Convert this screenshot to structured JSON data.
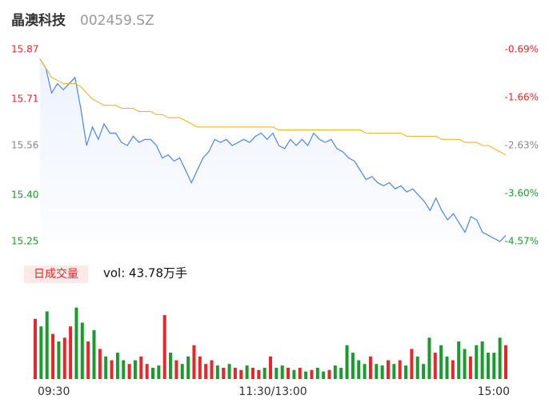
{
  "header": {
    "name": "晶澳科技",
    "code": "002459.SZ"
  },
  "chart_data": [
    {
      "type": "line",
      "x": [
        0,
        3,
        6,
        9,
        12,
        15,
        18,
        21,
        24,
        27,
        30,
        33,
        36,
        39,
        42,
        45,
        48,
        51,
        54,
        57,
        60,
        63,
        66,
        69,
        72,
        75,
        78,
        81,
        84,
        87,
        90,
        93,
        96,
        99,
        102,
        105,
        108,
        111,
        114,
        117,
        120,
        123,
        126,
        129,
        132,
        135,
        138,
        141,
        144,
        147,
        150,
        153,
        156,
        159,
        162,
        165,
        168,
        171,
        174,
        177,
        180,
        183,
        186,
        189,
        192,
        195,
        198,
        201,
        204,
        207,
        210,
        213,
        216,
        219,
        222,
        225,
        228,
        231,
        234,
        237,
        240
      ],
      "xlim": [
        0,
        240
      ],
      "series": [
        {
          "name": "price",
          "color": "#4a86e8",
          "values": [
            15.84,
            15.81,
            15.73,
            15.76,
            15.74,
            15.76,
            15.78,
            15.68,
            15.56,
            15.62,
            15.58,
            15.63,
            15.6,
            15.6,
            15.57,
            15.56,
            15.59,
            15.57,
            15.58,
            15.58,
            15.56,
            15.52,
            15.53,
            15.51,
            15.52,
            15.48,
            15.44,
            15.48,
            15.52,
            15.54,
            15.58,
            15.57,
            15.58,
            15.56,
            15.57,
            15.58,
            15.57,
            15.59,
            15.6,
            15.58,
            15.6,
            15.56,
            15.55,
            15.58,
            15.56,
            15.58,
            15.56,
            15.6,
            15.58,
            15.57,
            15.58,
            15.55,
            15.54,
            15.52,
            15.51,
            15.48,
            15.45,
            15.46,
            15.44,
            15.43,
            15.44,
            15.42,
            15.43,
            15.41,
            15.42,
            15.4,
            15.38,
            15.35,
            15.39,
            15.35,
            15.32,
            15.34,
            15.31,
            15.28,
            15.33,
            15.32,
            15.28,
            15.27,
            15.26,
            15.25,
            15.27
          ]
        },
        {
          "name": "average",
          "color": "#f0b429",
          "values": [
            15.84,
            15.81,
            15.78,
            15.77,
            15.76,
            15.76,
            15.76,
            15.75,
            15.73,
            15.71,
            15.7,
            15.69,
            15.69,
            15.69,
            15.68,
            15.68,
            15.68,
            15.67,
            15.67,
            15.67,
            15.66,
            15.66,
            15.65,
            15.65,
            15.65,
            15.64,
            15.63,
            15.62,
            15.62,
            15.62,
            15.62,
            15.62,
            15.62,
            15.62,
            15.62,
            15.62,
            15.62,
            15.62,
            15.62,
            15.62,
            15.62,
            15.61,
            15.61,
            15.61,
            15.61,
            15.61,
            15.61,
            15.61,
            15.61,
            15.61,
            15.61,
            15.61,
            15.61,
            15.61,
            15.61,
            15.61,
            15.6,
            15.6,
            15.6,
            15.6,
            15.6,
            15.6,
            15.6,
            15.59,
            15.59,
            15.59,
            15.59,
            15.59,
            15.59,
            15.58,
            15.58,
            15.58,
            15.58,
            15.57,
            15.57,
            15.57,
            15.56,
            15.56,
            15.55,
            15.54,
            15.53
          ]
        }
      ],
      "ylim": [
        15.25,
        15.87
      ],
      "yticks": [
        {
          "value": 15.87,
          "label": "15.87"
        },
        {
          "value": 15.71,
          "label": "15.71"
        },
        {
          "value": 15.56,
          "label": "15.56"
        },
        {
          "value": 15.4,
          "label": "15.40"
        },
        {
          "value": 15.25,
          "label": "15.25"
        }
      ],
      "y2lim": [
        -4.57,
        -0.69
      ],
      "y2ticks": [
        {
          "value": -0.69,
          "label": "-0.69%"
        },
        {
          "value": -1.66,
          "label": "-1.66%"
        },
        {
          "value": -2.63,
          "label": "-2.63%"
        },
        {
          "value": -3.6,
          "label": "-3.60%"
        },
        {
          "value": -4.57,
          "label": "-4.57%"
        }
      ],
      "up_color": "#e8262a",
      "down_color": "#1a9b2e",
      "flat_color": "#888888"
    },
    {
      "type": "bar",
      "title": "日成交量",
      "subtitle": "vol: 43.78万手",
      "x": [
        0,
        3,
        6,
        9,
        12,
        15,
        18,
        21,
        24,
        27,
        30,
        33,
        36,
        39,
        42,
        45,
        48,
        51,
        54,
        57,
        60,
        63,
        66,
        69,
        72,
        75,
        78,
        81,
        84,
        87,
        90,
        93,
        96,
        99,
        102,
        105,
        108,
        111,
        114,
        117,
        120,
        123,
        126,
        129,
        132,
        135,
        138,
        141,
        144,
        147,
        150,
        153,
        156,
        159,
        162,
        165,
        168,
        171,
        174,
        177,
        180,
        183,
        186,
        189,
        192,
        195,
        198,
        201,
        204,
        207,
        210,
        213,
        216,
        219,
        222,
        225,
        228,
        231,
        234,
        237,
        240
      ],
      "xlim": [
        0,
        240
      ],
      "values": [
        8000,
        7000,
        9000,
        6000,
        5000,
        5500,
        7000,
        9500,
        7500,
        5000,
        6500,
        4000,
        3000,
        2500,
        3500,
        2500,
        2000,
        2500,
        3000,
        2000,
        1500,
        1800,
        8500,
        3500,
        2500,
        2000,
        3000,
        4500,
        3000,
        2000,
        2500,
        1800,
        1500,
        2000,
        1500,
        1200,
        1800,
        1500,
        1200,
        1500,
        3000,
        1500,
        1800,
        1500,
        1200,
        1500,
        1000,
        1200,
        1500,
        1000,
        1200,
        1800,
        1500,
        4500,
        3500,
        2500,
        2000,
        3000,
        2000,
        1800,
        2500,
        2000,
        2500,
        1800,
        4000,
        3000,
        2000,
        5500,
        3500,
        4500,
        3000,
        2500,
        5000,
        4000,
        3000,
        4500,
        5000,
        3500,
        3500,
        5500,
        4500
      ],
      "ylim": [
        0,
        10000
      ],
      "xticks": [
        {
          "value": 0,
          "label": "09:30"
        },
        {
          "value": 120,
          "label": "11:30/13:00"
        },
        {
          "value": 240,
          "label": "15:00"
        }
      ],
      "up_color": "#e8262a",
      "down_color": "#1a9b2e"
    }
  ]
}
